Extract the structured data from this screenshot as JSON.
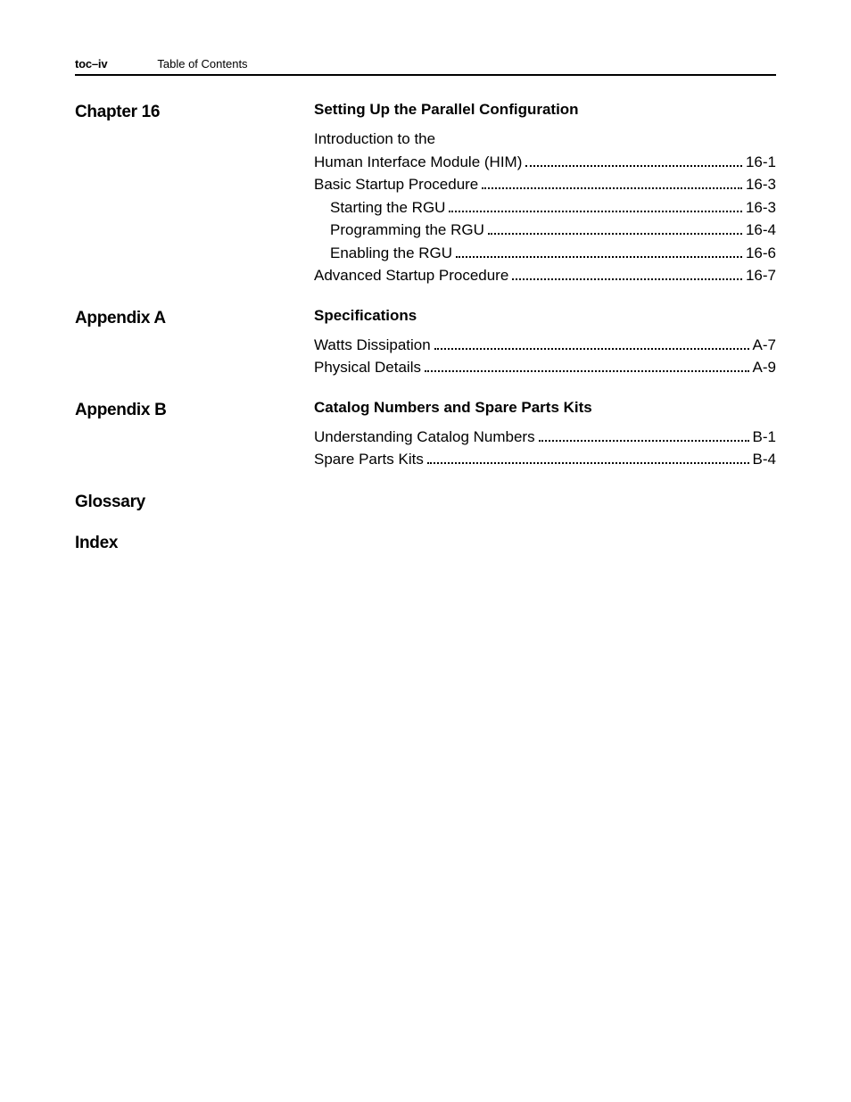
{
  "header": {
    "page_marker": "toc–iv",
    "title": "Table of Contents"
  },
  "sections": [
    {
      "label": "Chapter 16",
      "heading": "Setting Up the Parallel Configuration",
      "entries": [
        {
          "text": "Introduction to the",
          "page": null,
          "indent": 0
        },
        {
          "text": "Human Interface Module (HIM)",
          "page": "16-1",
          "indent": 0
        },
        {
          "text": "Basic Startup Procedure",
          "page": "16-3",
          "indent": 0
        },
        {
          "text": "Starting the RGU",
          "page": "16-3",
          "indent": 1
        },
        {
          "text": "Programming the RGU",
          "page": "16-4",
          "indent": 1
        },
        {
          "text": "Enabling the RGU",
          "page": "16-6",
          "indent": 1
        },
        {
          "text": "Advanced Startup Procedure",
          "page": "16-7",
          "indent": 0
        }
      ]
    },
    {
      "label": "Appendix A",
      "heading": "Specifications",
      "entries": [
        {
          "text": "Watts Dissipation",
          "page": "A-7",
          "indent": 0
        },
        {
          "text": "Physical Details",
          "page": "A-9",
          "indent": 0
        }
      ]
    },
    {
      "label": "Appendix B",
      "heading": "Catalog Numbers and Spare Parts Kits",
      "entries": [
        {
          "text": "Understanding Catalog Numbers",
          "page": "B-1",
          "indent": 0
        },
        {
          "text": "Spare Parts Kits",
          "page": "B-4",
          "indent": 0
        }
      ]
    },
    {
      "label": "Glossary",
      "heading": null,
      "entries": []
    },
    {
      "label": "Index",
      "heading": null,
      "entries": []
    }
  ]
}
